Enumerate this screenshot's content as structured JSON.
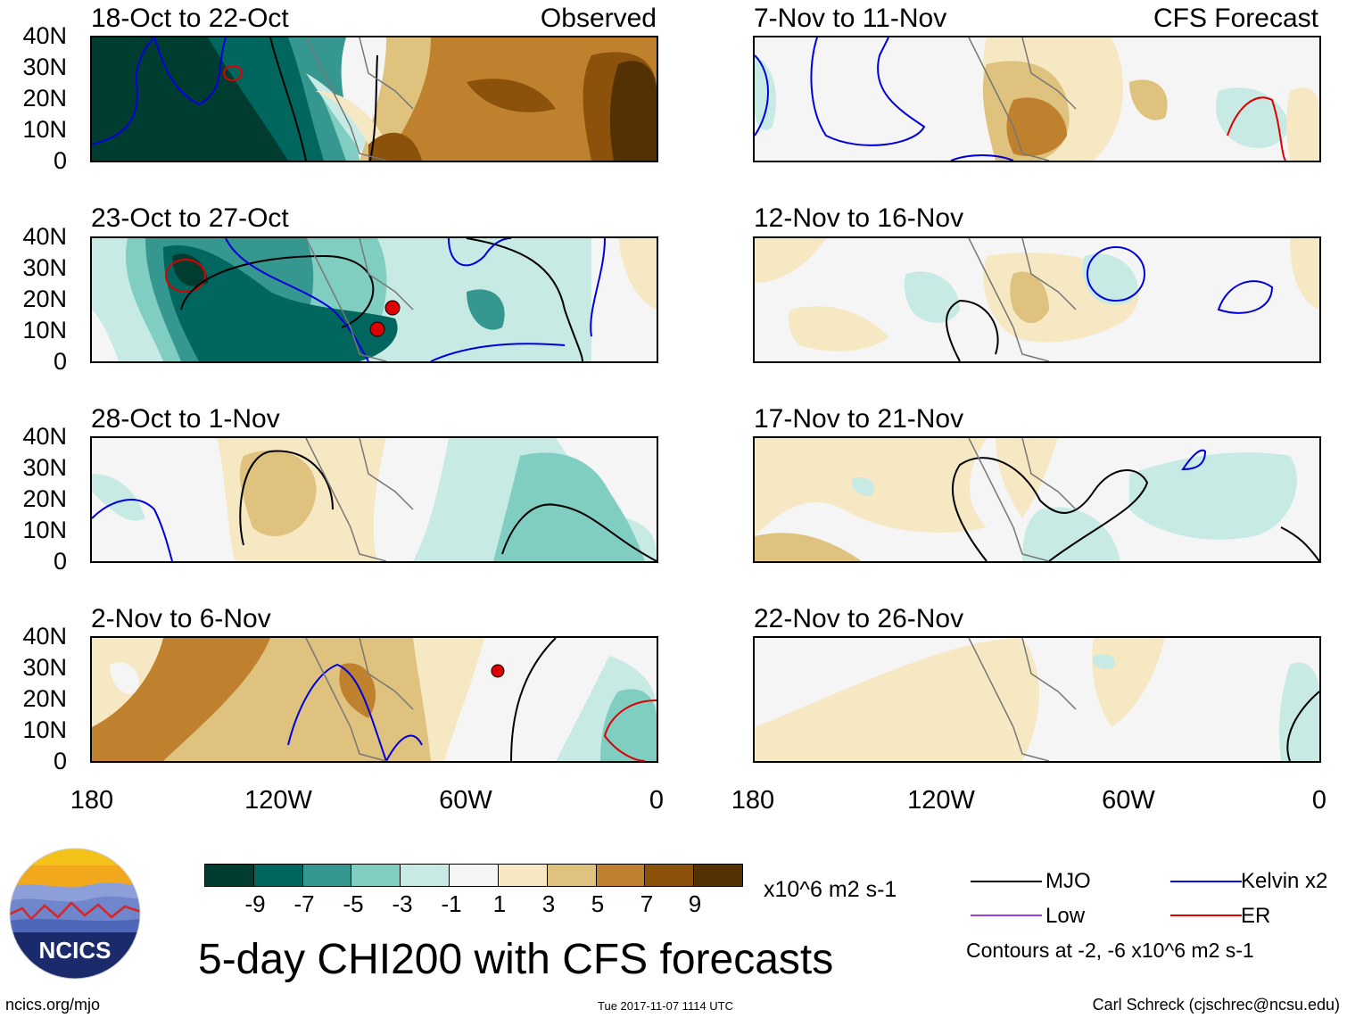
{
  "panels": [
    {
      "title": "18-Oct to 22-Oct",
      "right_label": "Observed"
    },
    {
      "title": "23-Oct to 27-Oct",
      "right_label": ""
    },
    {
      "title": "28-Oct to 1-Nov",
      "right_label": ""
    },
    {
      "title": "2-Nov to 6-Nov",
      "right_label": ""
    },
    {
      "title": "7-Nov to 11-Nov",
      "right_label": "CFS Forecast"
    },
    {
      "title": "12-Nov to 16-Nov",
      "right_label": ""
    },
    {
      "title": "17-Nov to 21-Nov",
      "right_label": ""
    },
    {
      "title": "22-Nov to 26-Nov",
      "right_label": ""
    }
  ],
  "lat_labels": [
    "40N",
    "30N",
    "20N",
    "10N",
    "0"
  ],
  "lon_labels": [
    "180",
    "120W",
    "60W",
    "0"
  ],
  "colorbar": {
    "colors": [
      "#003c30",
      "#01665e",
      "#35978f",
      "#80cdc1",
      "#c7eae5",
      "#f5f5f5",
      "#f6e8c3",
      "#dfc27d",
      "#bf812d",
      "#8c510a",
      "#543005"
    ],
    "tick_labels": [
      "-9",
      "-7",
      "-5",
      "-3",
      "-1",
      "1",
      "3",
      "5",
      "7",
      "9"
    ],
    "units": "x10^6 m2 s-1"
  },
  "legend": {
    "mjo": {
      "label": "MJO",
      "color": "#000000"
    },
    "kelvin": {
      "label": "Kelvin x2",
      "color": "#0000dd"
    },
    "low": {
      "label": "Low",
      "color": "#9b40e0"
    },
    "er": {
      "label": "ER",
      "color": "#dd0000"
    },
    "contour_note": "Contours at -2, -6 x10^6 m2 s-1"
  },
  "main_title": "5-day CHI200 with CFS forecasts",
  "logo_text": "NCICS",
  "footer": {
    "left": "ncics.org/mjo",
    "middle": "Tue 2017-11-07 1114 UTC",
    "right": "Carl Schreck (cjschrec@ncsu.edu)"
  }
}
